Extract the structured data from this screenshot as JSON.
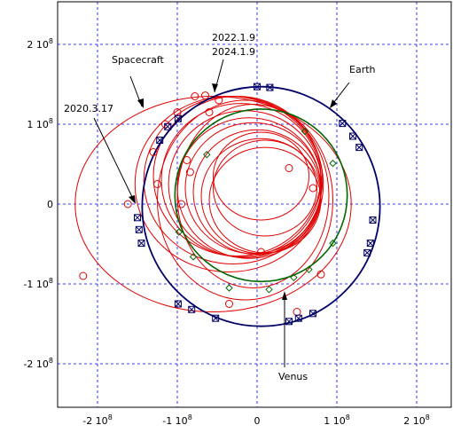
{
  "chart_data": {
    "type": "line",
    "xlim": [
      -250000000.0,
      250000000.0
    ],
    "ylim": [
      -250000000.0,
      250000000.0
    ],
    "grid": true,
    "colors": {
      "earth": "#000066",
      "venus": "#006600",
      "spacecraft": "#e00000",
      "grid": "#0000ff",
      "arrow": "#000000"
    },
    "x_ticks": [
      {
        "value": -200000000.0,
        "mant": "-2",
        "base": "10",
        "exp": "8"
      },
      {
        "value": -100000000.0,
        "mant": "-1",
        "base": "10",
        "exp": "8"
      },
      {
        "value": 0,
        "mant": "0",
        "base": "",
        "exp": ""
      },
      {
        "value": 100000000.0,
        "mant": "1",
        "base": "10",
        "exp": "8"
      },
      {
        "value": 200000000.0,
        "mant": "2",
        "base": "10",
        "exp": "8"
      }
    ],
    "y_ticks": [
      {
        "value": 200000000.0,
        "mant": "2",
        "base": "10",
        "exp": "8"
      },
      {
        "value": 100000000.0,
        "mant": "1",
        "base": "10",
        "exp": "8"
      },
      {
        "value": 0,
        "mant": "0",
        "base": "",
        "exp": ""
      },
      {
        "value": -100000000.0,
        "mant": "-1",
        "base": "10",
        "exp": "8"
      },
      {
        "value": -200000000.0,
        "mant": "-2",
        "base": "10",
        "exp": "8"
      }
    ],
    "earth_orbit": {
      "cx": 5000000.0,
      "cy": -3000000.0,
      "rx": 149000000.0,
      "ry": 150000000.0
    },
    "venus_orbit": {
      "cx": 5000000.0,
      "cy": 11000000.0,
      "rx": 108000000.0,
      "ry": 108000000.0
    },
    "earth_markers": [
      [
        0.0,
        147000000.0
      ],
      [
        16000000.0,
        146000000.0
      ],
      [
        107000000.0,
        101000000.0
      ],
      [
        120000000.0,
        85000000.0
      ],
      [
        128000000.0,
        71000000.0
      ],
      [
        145000000.0,
        -20000000.0
      ],
      [
        142000000.0,
        -49000000.0
      ],
      [
        138000000.0,
        -61000000.0
      ],
      [
        70000000.0,
        -137000000.0
      ],
      [
        52000000.0,
        -143000000.0
      ],
      [
        40000000.0,
        -147000000.0
      ],
      [
        -52000000.0,
        -143000000.0
      ],
      [
        -82000000.0,
        -132000000.0
      ],
      [
        -99000000.0,
        -125000000.0
      ],
      [
        -145000000.0,
        -49000000.0
      ],
      [
        -148000000.0,
        -32000000.0
      ],
      [
        -150000000.0,
        -17000000.0
      ],
      [
        -122000000.0,
        80000000.0
      ],
      [
        -112000000.0,
        97000000.0
      ],
      [
        -99000000.0,
        107000000.0
      ]
    ],
    "venus_markers": [
      [
        60000000.0,
        91000000.0
      ],
      [
        95000000.0,
        51000000.0
      ],
      [
        95000000.0,
        -49000000.0
      ],
      [
        65000000.0,
        -82000000.0
      ],
      [
        46000000.0,
        -92000000.0
      ],
      [
        15000000.0,
        -107000000.0
      ],
      [
        -35000000.0,
        -105000000.0
      ],
      [
        -80000000.0,
        -66000000.0
      ],
      [
        -98000000.0,
        -35000000.0
      ],
      [
        -63000000.0,
        62000000.0
      ]
    ],
    "spacecraft_orbits": [
      {
        "cx": -55000000.0,
        "cy": 0.0,
        "rx": 173000000.0,
        "ry": 135000000.0
      },
      {
        "cx": -35000000.0,
        "cy": 25000000.0,
        "rx": 118000000.0,
        "ry": 110000000.0
      },
      {
        "cx": -30000000.0,
        "cy": 30000000.0,
        "rx": 112000000.0,
        "ry": 105000000.0
      },
      {
        "cx": -25000000.0,
        "cy": 35000000.0,
        "rx": 105000000.0,
        "ry": 100000000.0
      },
      {
        "cx": -20000000.0,
        "cy": 30000000.0,
        "rx": 100000000.0,
        "ry": 96000000.0
      },
      {
        "cx": -15000000.0,
        "cy": 25000000.0,
        "rx": 96000000.0,
        "ry": 92000000.0
      },
      {
        "cx": -10000000.0,
        "cy": 20000000.0,
        "rx": 90000000.0,
        "ry": 88000000.0
      },
      {
        "cx": -5000000.0,
        "cy": 20000000.0,
        "rx": 85000000.0,
        "ry": 82000000.0
      },
      {
        "cx": 0.0,
        "cy": 15000000.0,
        "rx": 80000000.0,
        "ry": 78000000.0
      },
      {
        "cx": 5000000.0,
        "cy": 10000000.0,
        "rx": 75000000.0,
        "ry": 72000000.0
      },
      {
        "cx": 10000000.0,
        "cy": 5000000.0,
        "rx": 70000000.0,
        "ry": 66000000.0
      },
      {
        "cx": 10000000.0,
        "cy": 20000000.0,
        "rx": 65000000.0,
        "ry": 60000000.0
      },
      {
        "cx": 5000000.0,
        "cy": 35000000.0,
        "rx": 60000000.0,
        "ry": 55000000.0
      },
      {
        "cx": -5000000.0,
        "cy": 10000000.0,
        "rx": 95000000.0,
        "ry": 115000000.0
      },
      {
        "cx": -15000000.0,
        "cy": 5000000.0,
        "rx": 110000000.0,
        "ry": 125000000.0
      }
    ],
    "spacecraft_markers": [
      [
        -218000000.0,
        -90000000.0
      ],
      [
        -162000000.0,
        0.0
      ],
      [
        -130000000.0,
        65000000.0
      ],
      [
        -115000000.0,
        100000000.0
      ],
      [
        -100000000.0,
        115000000.0
      ],
      [
        -78000000.0,
        135000000.0
      ],
      [
        -65000000.0,
        136000000.0
      ],
      [
        -48000000.0,
        130000000.0
      ],
      [
        -60000000.0,
        115000000.0
      ],
      [
        -84000000.0,
        40000000.0
      ],
      [
        -88000000.0,
        55000000.0
      ],
      [
        -95000000.0,
        0.0
      ],
      [
        -125000000.0,
        25000000.0
      ],
      [
        -35000000.0,
        -125000000.0
      ],
      [
        5000000.0,
        -60000000.0
      ],
      [
        40000000.0,
        45000000.0
      ],
      [
        70000000.0,
        20000000.0
      ],
      [
        50000000.0,
        -135000000.0
      ],
      [
        80000000.0,
        -88000000.0
      ]
    ],
    "annotations": [
      {
        "text": "2022.1.9"
      },
      {
        "text": "2024.1.9"
      },
      {
        "text": "Spacecraft"
      },
      {
        "text": "Earth"
      },
      {
        "text": "2020.3.17"
      },
      {
        "text": "Venus"
      }
    ]
  }
}
